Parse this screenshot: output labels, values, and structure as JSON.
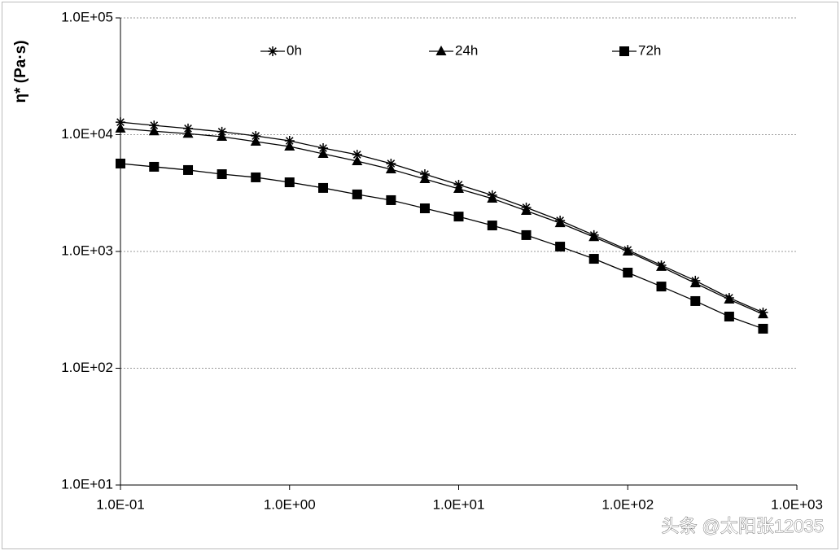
{
  "chart_data": {
    "type": "line",
    "y_label": "η* (Pa·s)",
    "log_x": true,
    "log_y": true,
    "grid": true,
    "legend": "top",
    "watermark": "头条 @太阳张12035",
    "x": [
      0.1,
      0.158,
      0.251,
      0.398,
      0.631,
      1,
      1.58,
      2.51,
      3.98,
      6.31,
      10,
      15.8,
      25.1,
      39.8,
      63.1,
      100,
      158,
      251,
      398,
      631
    ],
    "series": [
      {
        "name": "0h",
        "color": "#000000",
        "marker": "asterisk",
        "values": [
          12800,
          12000,
          11300,
          10600,
          9760,
          8870,
          7670,
          6750,
          5660,
          4590,
          3730,
          3030,
          2380,
          1840,
          1380,
          1030,
          762,
          562,
          401,
          300
        ]
      },
      {
        "name": "24h",
        "color": "#000000",
        "marker": "triangle",
        "values": [
          11300,
          10700,
          10200,
          9610,
          8730,
          7930,
          6860,
          5940,
          5060,
          4170,
          3440,
          2840,
          2230,
          1750,
          1330,
          1000,
          738,
          535,
          388,
          290
        ]
      },
      {
        "name": "72h",
        "color": "#000000",
        "marker": "square",
        "values": [
          5660,
          5310,
          4980,
          4590,
          4310,
          3910,
          3500,
          3080,
          2750,
          2340,
          1990,
          1670,
          1380,
          1100,
          865,
          659,
          501,
          376,
          277,
          218
        ]
      }
    ],
    "xlim": [
      0.1,
      1000
    ],
    "xticks": [
      {
        "value": 0.1,
        "label": "1.0E-01"
      },
      {
        "value": 1,
        "label": "1.0E+00"
      },
      {
        "value": 10,
        "label": "1.0E+01"
      },
      {
        "value": 100,
        "label": "1.0E+02"
      },
      {
        "value": 1000,
        "label": "1.0E+03"
      }
    ],
    "ylim": [
      10,
      100000
    ],
    "yticks": [
      {
        "value": 10,
        "label": "1.0E+01"
      },
      {
        "value": 100,
        "label": "1.0E+02"
      },
      {
        "value": 1000,
        "label": "1.0E+03"
      },
      {
        "value": 10000,
        "label": "1.0E+04"
      },
      {
        "value": 100000,
        "label": "1.0E+05"
      }
    ]
  }
}
